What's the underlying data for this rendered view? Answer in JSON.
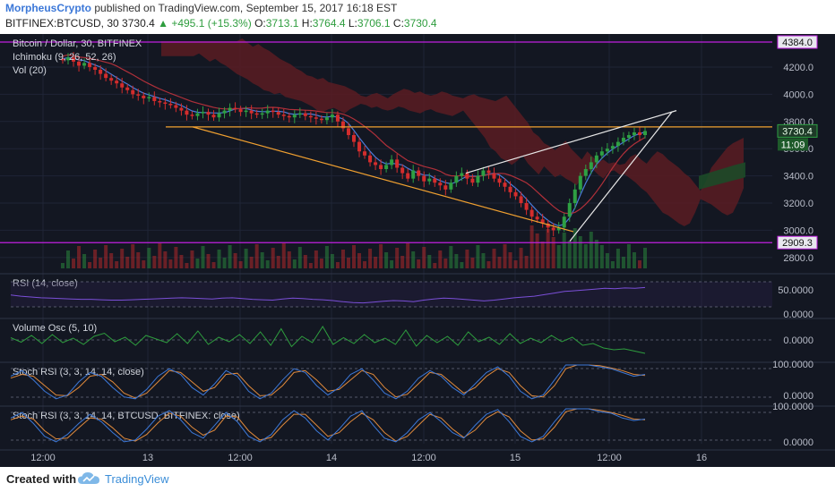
{
  "header": {
    "author": "MorpheusCrypto",
    "published_text": "published on TradingView.com, September 15, 2017 16:18 EST",
    "symbol_line": "BITFINEX:BTCUSD, 30",
    "last": "3730.4",
    "change_arrow": "▲",
    "change": "+495.1 (+15.3%)",
    "o_label": "O:",
    "o": "3713.1",
    "h_label": "H:",
    "h": "3764.4",
    "l_label": "L:",
    "l": "3706.1",
    "c_label": "C:",
    "c": "3730.4"
  },
  "footer": {
    "created_with": "Created with",
    "brand": "TradingView"
  },
  "colors": {
    "background": "#131722",
    "grid": "#1f2536",
    "up_candle": "#2ea043",
    "down_candle": "#d42d2d",
    "kumo_bear": "#5a1c22",
    "kumo_bull": "#1c4a28",
    "tenkan": "#4a7bd8",
    "kijun": "#b0303a",
    "rsi": "#7b4fd8",
    "vol_osc": "#2e9d3e",
    "stoch_k": "#3c78d8",
    "stoch_d": "#e08a3c",
    "orange_line": "#f0a030",
    "magenta_line": "#c020e0"
  },
  "chart_data": {
    "type": "candlestick",
    "title": "Bitcoin / Dollar, 30, BITFINEX",
    "indicators": [
      "Ichimoku (9, 26, 52, 26)",
      "Vol (20)"
    ],
    "x_ticks": [
      "12:00",
      "13",
      "12:00",
      "14",
      "12:00",
      "15",
      "12:00",
      "16"
    ],
    "y_ticks": [
      "4200.0",
      "4000.0",
      "3800.0",
      "3600.0",
      "3400.0",
      "3200.0",
      "3000.0",
      "2800.0"
    ],
    "ylim": [
      2720,
      4430
    ],
    "price_labels": [
      {
        "value": 4384.0,
        "text": "4384.0",
        "style": "magenta"
      },
      {
        "value": 3730.4,
        "text": "3730.4",
        "style": "green"
      },
      {
        "value": 2909.3,
        "text": "2909.3",
        "style": "magenta"
      }
    ],
    "countdown": "11:09",
    "horizontal_levels": [
      {
        "value": 4384.0,
        "color": "magenta"
      },
      {
        "value": 3760.0,
        "color": "orange"
      },
      {
        "value": 2909.3,
        "color": "magenta"
      }
    ],
    "close_series": [
      4250,
      4270,
      4240,
      4210,
      4230,
      4200,
      4180,
      4150,
      4120,
      4100,
      4080,
      4050,
      4030,
      4000,
      3990,
      3970,
      3980,
      3950,
      3940,
      3930,
      3920,
      3900,
      3880,
      3850,
      3840,
      3860,
      3870,
      3850,
      3830,
      3860,
      3880,
      3900,
      3890,
      3870,
      3880,
      3860,
      3850,
      3860,
      3880,
      3870,
      3850,
      3840,
      3830,
      3850,
      3860,
      3840,
      3830,
      3820,
      3810,
      3830,
      3850,
      3800,
      3750,
      3700,
      3650,
      3580,
      3550,
      3500,
      3480,
      3450,
      3480,
      3520,
      3460,
      3420,
      3380,
      3440,
      3400,
      3360,
      3380,
      3350,
      3330,
      3300,
      3350,
      3400,
      3420,
      3380,
      3350,
      3400,
      3440,
      3420,
      3380,
      3350,
      3320,
      3280,
      3250,
      3200,
      3150,
      3100,
      3080,
      3050,
      3020,
      3000,
      3020,
      3100,
      3200,
      3300,
      3400,
      3450,
      3500,
      3550,
      3580,
      3600,
      3620,
      3650,
      3680,
      3700,
      3720,
      3700,
      3730
    ],
    "rsi": {
      "label": "RSI (14, close)",
      "ticks": [
        "50.0000",
        "0.0000"
      ],
      "values": [
        55,
        52,
        50,
        48,
        47,
        46,
        45,
        44,
        44,
        43,
        42,
        42,
        43,
        44,
        45,
        46,
        47,
        48,
        47,
        46,
        45,
        47,
        48,
        46,
        44,
        43,
        42,
        45,
        47,
        46,
        44,
        43,
        41,
        38,
        36,
        35,
        37,
        39,
        41,
        40,
        38,
        42,
        45,
        47,
        46,
        44,
        42,
        40,
        42,
        45,
        48,
        50,
        52,
        56,
        60,
        64,
        66,
        68,
        70,
        72,
        71,
        73,
        72,
        74
      ]
    },
    "volume_osc": {
      "label": "Volume Osc (5, 10)",
      "ticks": [
        "0.0000"
      ],
      "values": [
        5,
        -5,
        10,
        -8,
        12,
        -6,
        4,
        -10,
        8,
        15,
        -4,
        6,
        -12,
        10,
        2,
        -6,
        14,
        -8,
        20,
        -10,
        6,
        -4,
        12,
        -8,
        18,
        -12,
        25,
        -15,
        8,
        -6,
        30,
        -10,
        5,
        -8,
        12,
        -6,
        4,
        -10,
        22,
        -14,
        10,
        -6,
        8,
        -12,
        18,
        -4,
        6,
        -10,
        14,
        -8,
        4,
        -6,
        10,
        -4,
        6,
        -12,
        -8,
        -18,
        -22,
        -20,
        -25,
        -30
      ]
    },
    "stoch_rsi_1": {
      "label": "Stoch RSI (3, 3, 14, 14, close)",
      "ticks": [
        "100.0000",
        "0.0000"
      ],
      "k": [
        70,
        85,
        60,
        30,
        10,
        20,
        55,
        80,
        70,
        40,
        15,
        10,
        35,
        70,
        90,
        75,
        40,
        20,
        50,
        85,
        70,
        30,
        10,
        25,
        60,
        90,
        80,
        45,
        20,
        40,
        75,
        90,
        60,
        25,
        10,
        30,
        65,
        85,
        70,
        40,
        20,
        50,
        80,
        95,
        70,
        30,
        10,
        20,
        60,
        100,
        100,
        100,
        95,
        90,
        80,
        70,
        75
      ],
      "d": [
        65,
        75,
        70,
        45,
        20,
        18,
        40,
        70,
        75,
        55,
        25,
        12,
        25,
        55,
        85,
        80,
        55,
        30,
        40,
        75,
        78,
        45,
        18,
        20,
        45,
        80,
        85,
        60,
        30,
        35,
        60,
        85,
        75,
        40,
        15,
        22,
        50,
        80,
        75,
        50,
        25,
        40,
        70,
        90,
        80,
        45,
        18,
        15,
        45,
        90,
        100,
        100,
        98,
        92,
        85,
        75,
        72
      ]
    },
    "stoch_rsi_2": {
      "label": "Stoch RSI (3, 3, 14, 14, BTCUSD, BITFINEX: close)",
      "ticks": [
        "100.0000",
        "0.0000"
      ],
      "k": [
        75,
        90,
        60,
        25,
        10,
        30,
        60,
        85,
        65,
        35,
        10,
        15,
        45,
        80,
        95,
        70,
        35,
        20,
        55,
        90,
        65,
        25,
        10,
        30,
        70,
        95,
        75,
        40,
        15,
        45,
        80,
        95,
        55,
        20,
        10,
        35,
        70,
        90,
        65,
        35,
        20,
        55,
        85,
        98,
        65,
        25,
        10,
        25,
        65,
        100,
        100,
        100,
        92,
        88,
        75,
        68,
        72
      ],
      "d": [
        70,
        80,
        72,
        40,
        18,
        20,
        48,
        75,
        72,
        48,
        20,
        12,
        30,
        62,
        88,
        80,
        50,
        28,
        42,
        80,
        78,
        40,
        15,
        22,
        55,
        85,
        85,
        55,
        25,
        35,
        65,
        88,
        70,
        35,
        12,
        25,
        55,
        85,
        75,
        45,
        22,
        42,
        75,
        92,
        78,
        40,
        15,
        18,
        50,
        92,
        100,
        100,
        96,
        90,
        82,
        72,
        70
      ]
    }
  }
}
